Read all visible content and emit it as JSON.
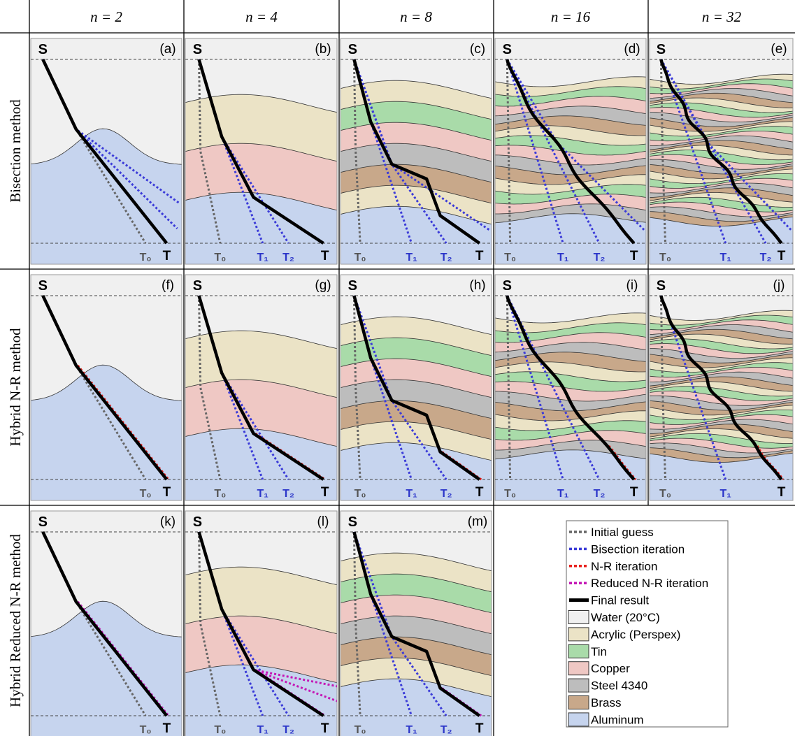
{
  "columns": [
    "n = 2",
    "n = 4",
    "n = 8",
    "n = 16",
    "n = 32"
  ],
  "rows": [
    "Bisection method",
    "Hybrid N-R method",
    "Hybrid Reduced N-R method"
  ],
  "panels": [
    {
      "label": "(a)",
      "source": "S",
      "target": "T",
      "markers": [
        "T₀"
      ]
    },
    {
      "label": "(b)",
      "source": "S",
      "target": "T",
      "markers": [
        "T₀",
        "T₁",
        "T₂"
      ]
    },
    {
      "label": "(c)",
      "source": "S",
      "target": "T",
      "markers": [
        "T₀",
        "T₁",
        "T₂"
      ]
    },
    {
      "label": "(d)",
      "source": "S",
      "target": "T",
      "markers": [
        "T₀",
        "T₁",
        "T₂"
      ]
    },
    {
      "label": "(e)",
      "source": "S",
      "target": "T",
      "markers": [
        "T₀",
        "T₁",
        "T₂"
      ]
    },
    {
      "label": "(f)",
      "source": "S",
      "target": "T",
      "markers": [
        "T₀"
      ]
    },
    {
      "label": "(g)",
      "source": "S",
      "target": "T",
      "markers": [
        "T₀",
        "T₁",
        "T₂"
      ]
    },
    {
      "label": "(h)",
      "source": "S",
      "target": "T",
      "markers": [
        "T₀",
        "T₁",
        "T₂"
      ]
    },
    {
      "label": "(i)",
      "source": "S",
      "target": "T",
      "markers": [
        "T₀",
        "T₁",
        "T₂"
      ]
    },
    {
      "label": "(j)",
      "source": "S",
      "target": "T",
      "markers": [
        "T₀",
        "T₁"
      ]
    },
    {
      "label": "(k)",
      "source": "S",
      "target": "T",
      "markers": [
        "T₀"
      ]
    },
    {
      "label": "(l)",
      "source": "S",
      "target": "T",
      "markers": [
        "T₀",
        "T₁",
        "T₂"
      ]
    },
    {
      "label": "(m)",
      "source": "S",
      "target": "T",
      "markers": [
        "T₀",
        "T₁",
        "T₂"
      ]
    }
  ],
  "legend": [
    {
      "label": "Initial guess",
      "color": "#666666"
    },
    {
      "label": "Bisection iteration",
      "color": "#3b3bd8"
    },
    {
      "label": "N-R iteration",
      "color": "#e8201c"
    },
    {
      "label": "Reduced N-R iteration",
      "color": "#c417b5"
    },
    {
      "label": "Final result",
      "color": "#000000"
    },
    {
      "label": "Water (20°C)",
      "color": "#f0f0f0"
    },
    {
      "label": "Acrylic (Perspex)",
      "color": "#ebe3c6"
    },
    {
      "label": "Tin",
      "color": "#a9dba9"
    },
    {
      "label": "Copper",
      "color": "#efc8c4"
    },
    {
      "label": "Steel 4340",
      "color": "#bdbdbd"
    },
    {
      "label": "Brass",
      "color": "#c8a88a"
    },
    {
      "label": "Aluminum",
      "color": "#c6d4ee"
    }
  ]
}
